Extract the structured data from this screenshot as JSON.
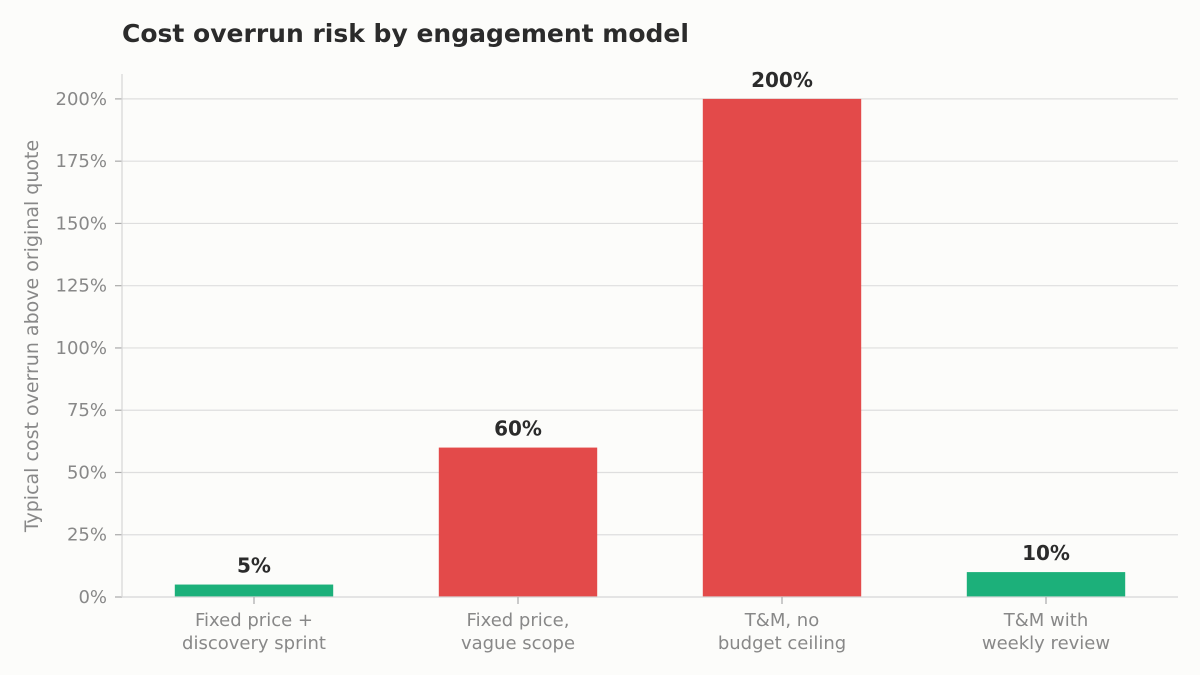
{
  "chart_data": {
    "type": "bar",
    "title": "Cost overrun risk by engagement model",
    "ylabel": "Typical cost overrun above original quote",
    "xlabel": "",
    "categories": [
      [
        "Fixed price +",
        "discovery sprint"
      ],
      [
        "Fixed price,",
        "vague scope"
      ],
      [
        "T&M, no",
        "budget ceiling"
      ],
      [
        "T&M with",
        "weekly review"
      ]
    ],
    "values": [
      5,
      60,
      200,
      10
    ],
    "value_labels": [
      "5%",
      "60%",
      "200%",
      "10%"
    ],
    "ylim": [
      0,
      210
    ],
    "yticks": [
      0,
      25,
      50,
      75,
      100,
      125,
      150,
      175,
      200
    ],
    "ytick_labels": [
      "0%",
      "25%",
      "50%",
      "75%",
      "100%",
      "125%",
      "150%",
      "175%",
      "200%"
    ],
    "grid": true,
    "legend": "none",
    "colors": {
      "low_risk": "#1cb07a",
      "high_risk": "#e34a4a"
    },
    "bar_color_keys": [
      "low_risk",
      "high_risk",
      "high_risk",
      "low_risk"
    ]
  }
}
